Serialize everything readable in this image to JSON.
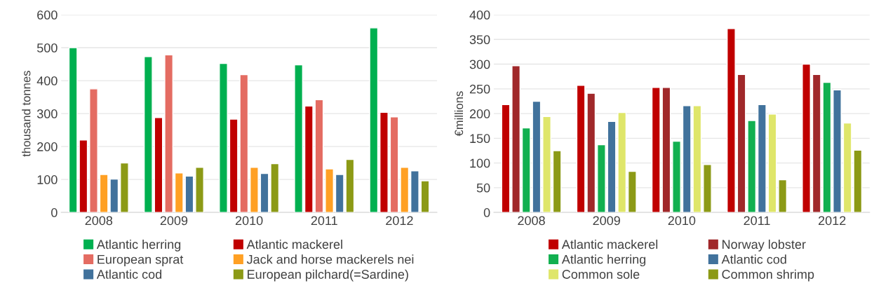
{
  "chart_data": [
    {
      "type": "bar",
      "ylabel": "thousand tonnes",
      "categories": [
        "2008",
        "2009",
        "2010",
        "2011",
        "2012"
      ],
      "ylim": [
        0,
        600
      ],
      "yticks": [
        0,
        100,
        200,
        300,
        400,
        500,
        600
      ],
      "grid": "y",
      "legend": "bottom",
      "series": [
        {
          "name": "Atlantic herring",
          "color": "#00b050",
          "values": [
            500,
            473,
            452,
            448,
            560
          ]
        },
        {
          "name": "Atlantic mackerel",
          "color": "#c00000",
          "values": [
            220,
            288,
            283,
            323,
            304
          ]
        },
        {
          "name": "European sprat",
          "color": "#e46c62",
          "values": [
            375,
            478,
            418,
            342,
            290
          ]
        },
        {
          "name": "Jack and horse mackerels nei",
          "color": "#ffa024",
          "values": [
            115,
            120,
            137,
            132,
            137
          ]
        },
        {
          "name": "Atlantic cod",
          "color": "#41729c",
          "values": [
            101,
            110,
            118,
            115,
            126
          ]
        },
        {
          "name": "European pilchard(=Sardine)",
          "color": "#8c9a16",
          "values": [
            150,
            137,
            148,
            161,
            96
          ]
        }
      ]
    },
    {
      "type": "bar",
      "ylabel": "€millions",
      "categories": [
        "2008",
        "2009",
        "2010",
        "2011",
        "2012"
      ],
      "ylim": [
        0,
        400
      ],
      "yticks": [
        0,
        50,
        100,
        150,
        200,
        250,
        300,
        350,
        400
      ],
      "grid": "y",
      "legend": "bottom",
      "series": [
        {
          "name": "Atlantic mackerel",
          "color": "#c00000",
          "values": [
            218,
            257,
            253,
            372,
            300
          ]
        },
        {
          "name": "Norway lobster",
          "color": "#a0282a",
          "values": [
            297,
            241,
            253,
            279,
            279
          ]
        },
        {
          "name": "Atlantic herring",
          "color": "#12b050",
          "values": [
            171,
            137,
            144,
            186,
            263
          ]
        },
        {
          "name": "Atlantic cod",
          "color": "#41729c",
          "values": [
            225,
            184,
            216,
            218,
            248
          ]
        },
        {
          "name": "Common sole",
          "color": "#dfe66a",
          "values": [
            194,
            202,
            216,
            199,
            181
          ]
        },
        {
          "name": "Common shrimp",
          "color": "#8c9a16",
          "values": [
            125,
            83,
            97,
            66,
            126
          ]
        }
      ]
    }
  ]
}
